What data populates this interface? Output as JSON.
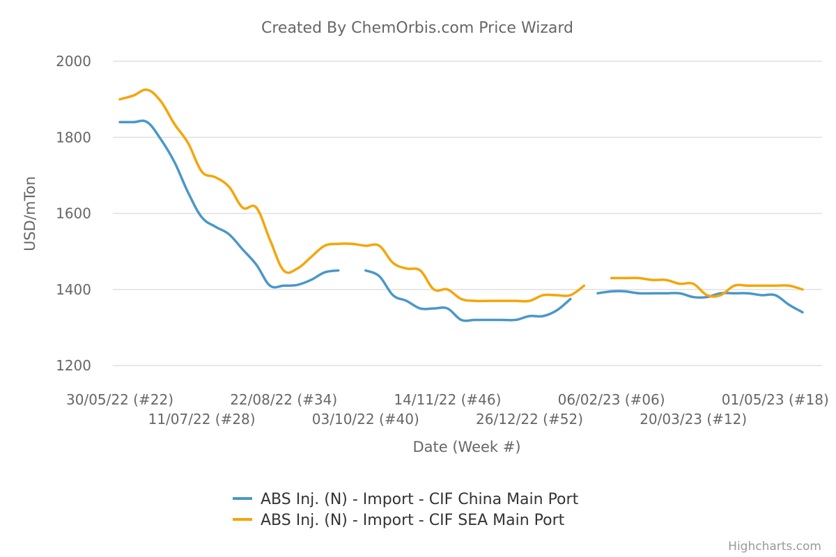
{
  "chart_data": {
    "type": "line",
    "title": "Created By ChemOrbis.com Price Wizard",
    "xlabel": "Date (Week #)",
    "ylabel": "USD/mTon",
    "ylim": [
      1200,
      2000
    ],
    "yticks": [
      "2000",
      "1800",
      "1600",
      "1400",
      "1200"
    ],
    "grid": true,
    "legend_position": "bottom-center",
    "x_tick_labels": [
      {
        "week": 0,
        "label": "30/05/22 (#22)"
      },
      {
        "week": 6,
        "label": "11/07/22 (#28)"
      },
      {
        "week": 12,
        "label": "22/08/22 (#34)"
      },
      {
        "week": 18,
        "label": "03/10/22 (#40)"
      },
      {
        "week": 24,
        "label": "14/11/22 (#46)"
      },
      {
        "week": 30,
        "label": "26/12/22 (#52)"
      },
      {
        "week": 36,
        "label": "06/02/23 (#06)"
      },
      {
        "week": 42,
        "label": "20/03/23 (#12)"
      },
      {
        "week": 48,
        "label": "01/05/23 (#18)"
      }
    ],
    "weeks": [
      0,
      1,
      2,
      3,
      4,
      5,
      6,
      7,
      8,
      9,
      10,
      11,
      12,
      13,
      14,
      15,
      16,
      17,
      18,
      19,
      20,
      21,
      22,
      23,
      24,
      25,
      26,
      27,
      28,
      29,
      30,
      31,
      32,
      33,
      34,
      35,
      36,
      37,
      38,
      39,
      40,
      41,
      42,
      43,
      44,
      45,
      46,
      47,
      48,
      49,
      50
    ],
    "series": [
      {
        "name": "ABS Inj. (N) - Import - CIF China Main Port",
        "color": "#4a97c9",
        "values": [
          1840,
          1840,
          1840,
          1795,
          1735,
          1655,
          1590,
          1565,
          1545,
          1505,
          1465,
          1410,
          1410,
          1412,
          1425,
          1445,
          1450,
          null,
          1450,
          1435,
          1385,
          1370,
          1350,
          1350,
          1350,
          1320,
          1320,
          1320,
          1320,
          1320,
          1330,
          1330,
          1345,
          1375,
          null,
          1390,
          1395,
          1395,
          1390,
          1390,
          1390,
          1390,
          1380,
          1380,
          1390,
          1390,
          1390,
          1385,
          1385,
          1360,
          1340
        ]
      },
      {
        "name": "ABS Inj. (N) - Import - CIF SEA Main Port",
        "color": "#f5a50a",
        "values": [
          1900,
          1910,
          1925,
          1895,
          1835,
          1785,
          1710,
          1695,
          1670,
          1615,
          1615,
          1530,
          1450,
          1455,
          1485,
          1515,
          1520,
          1520,
          1515,
          1515,
          1470,
          1455,
          1450,
          1400,
          1400,
          1375,
          1370,
          1370,
          1370,
          1370,
          1370,
          1385,
          1385,
          1385,
          1410,
          null,
          1430,
          1430,
          1430,
          1425,
          1425,
          1415,
          1415,
          1385,
          1385,
          1410,
          1410,
          1410,
          1410,
          1410,
          1400
        ]
      }
    ]
  },
  "credit": "Highcharts.com"
}
